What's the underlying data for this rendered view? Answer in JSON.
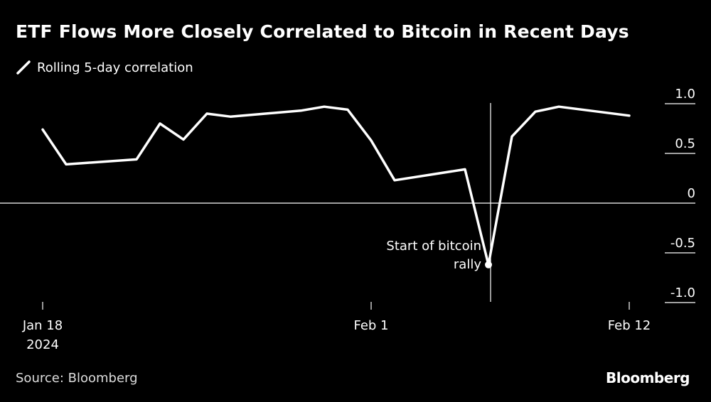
{
  "header": {
    "title": "ETF Flows More Closely Correlated to Bitcoin in Recent Days",
    "legend_label": "Rolling 5-day correlation"
  },
  "footer": {
    "source": "Source: Bloomberg",
    "brand": "Bloomberg"
  },
  "colors": {
    "background": "#000000",
    "line": "#ffffff"
  },
  "chart_data": {
    "type": "line",
    "series": [
      {
        "name": "Rolling 5-day correlation",
        "points": [
          {
            "x": "2024-01-18",
            "y": 0.74
          },
          {
            "x": "2024-01-19",
            "y": 0.39
          },
          {
            "x": "2024-01-22",
            "y": 0.44
          },
          {
            "x": "2024-01-23",
            "y": 0.8
          },
          {
            "x": "2024-01-24",
            "y": 0.64
          },
          {
            "x": "2024-01-25",
            "y": 0.9
          },
          {
            "x": "2024-01-26",
            "y": 0.87
          },
          {
            "x": "2024-01-29",
            "y": 0.93
          },
          {
            "x": "2024-01-30",
            "y": 0.97
          },
          {
            "x": "2024-01-31",
            "y": 0.94
          },
          {
            "x": "2024-02-01",
            "y": 0.63
          },
          {
            "x": "2024-02-02",
            "y": 0.23
          },
          {
            "x": "2024-02-05",
            "y": 0.34
          },
          {
            "x": "2024-02-06",
            "y": -0.62
          },
          {
            "x": "2024-02-07",
            "y": 0.67
          },
          {
            "x": "2024-02-08",
            "y": 0.92
          },
          {
            "x": "2024-02-09",
            "y": 0.97
          },
          {
            "x": "2024-02-12",
            "y": 0.88
          }
        ]
      }
    ],
    "x_ticks": [
      {
        "x": "2024-01-18",
        "label": "Jan 18",
        "sublabel": "2024"
      },
      {
        "x": "2024-02-01",
        "label": "Feb 1",
        "sublabel": ""
      },
      {
        "x": "2024-02-12",
        "label": "Feb 12",
        "sublabel": ""
      }
    ],
    "y_ticks": [
      {
        "value": 1.0,
        "label": "1.0"
      },
      {
        "value": 0.5,
        "label": "0.5"
      },
      {
        "value": 0,
        "label": "0"
      },
      {
        "value": -0.5,
        "label": "-0.5"
      },
      {
        "value": -1.0,
        "label": "-1.0"
      }
    ],
    "ylim": [
      -1.0,
      1.0
    ],
    "grid": false,
    "y_axis_side": "right",
    "annotation": {
      "x": "2024-02-06",
      "y": -0.62,
      "lines": [
        "Start of bitcoin",
        "rally"
      ]
    }
  }
}
